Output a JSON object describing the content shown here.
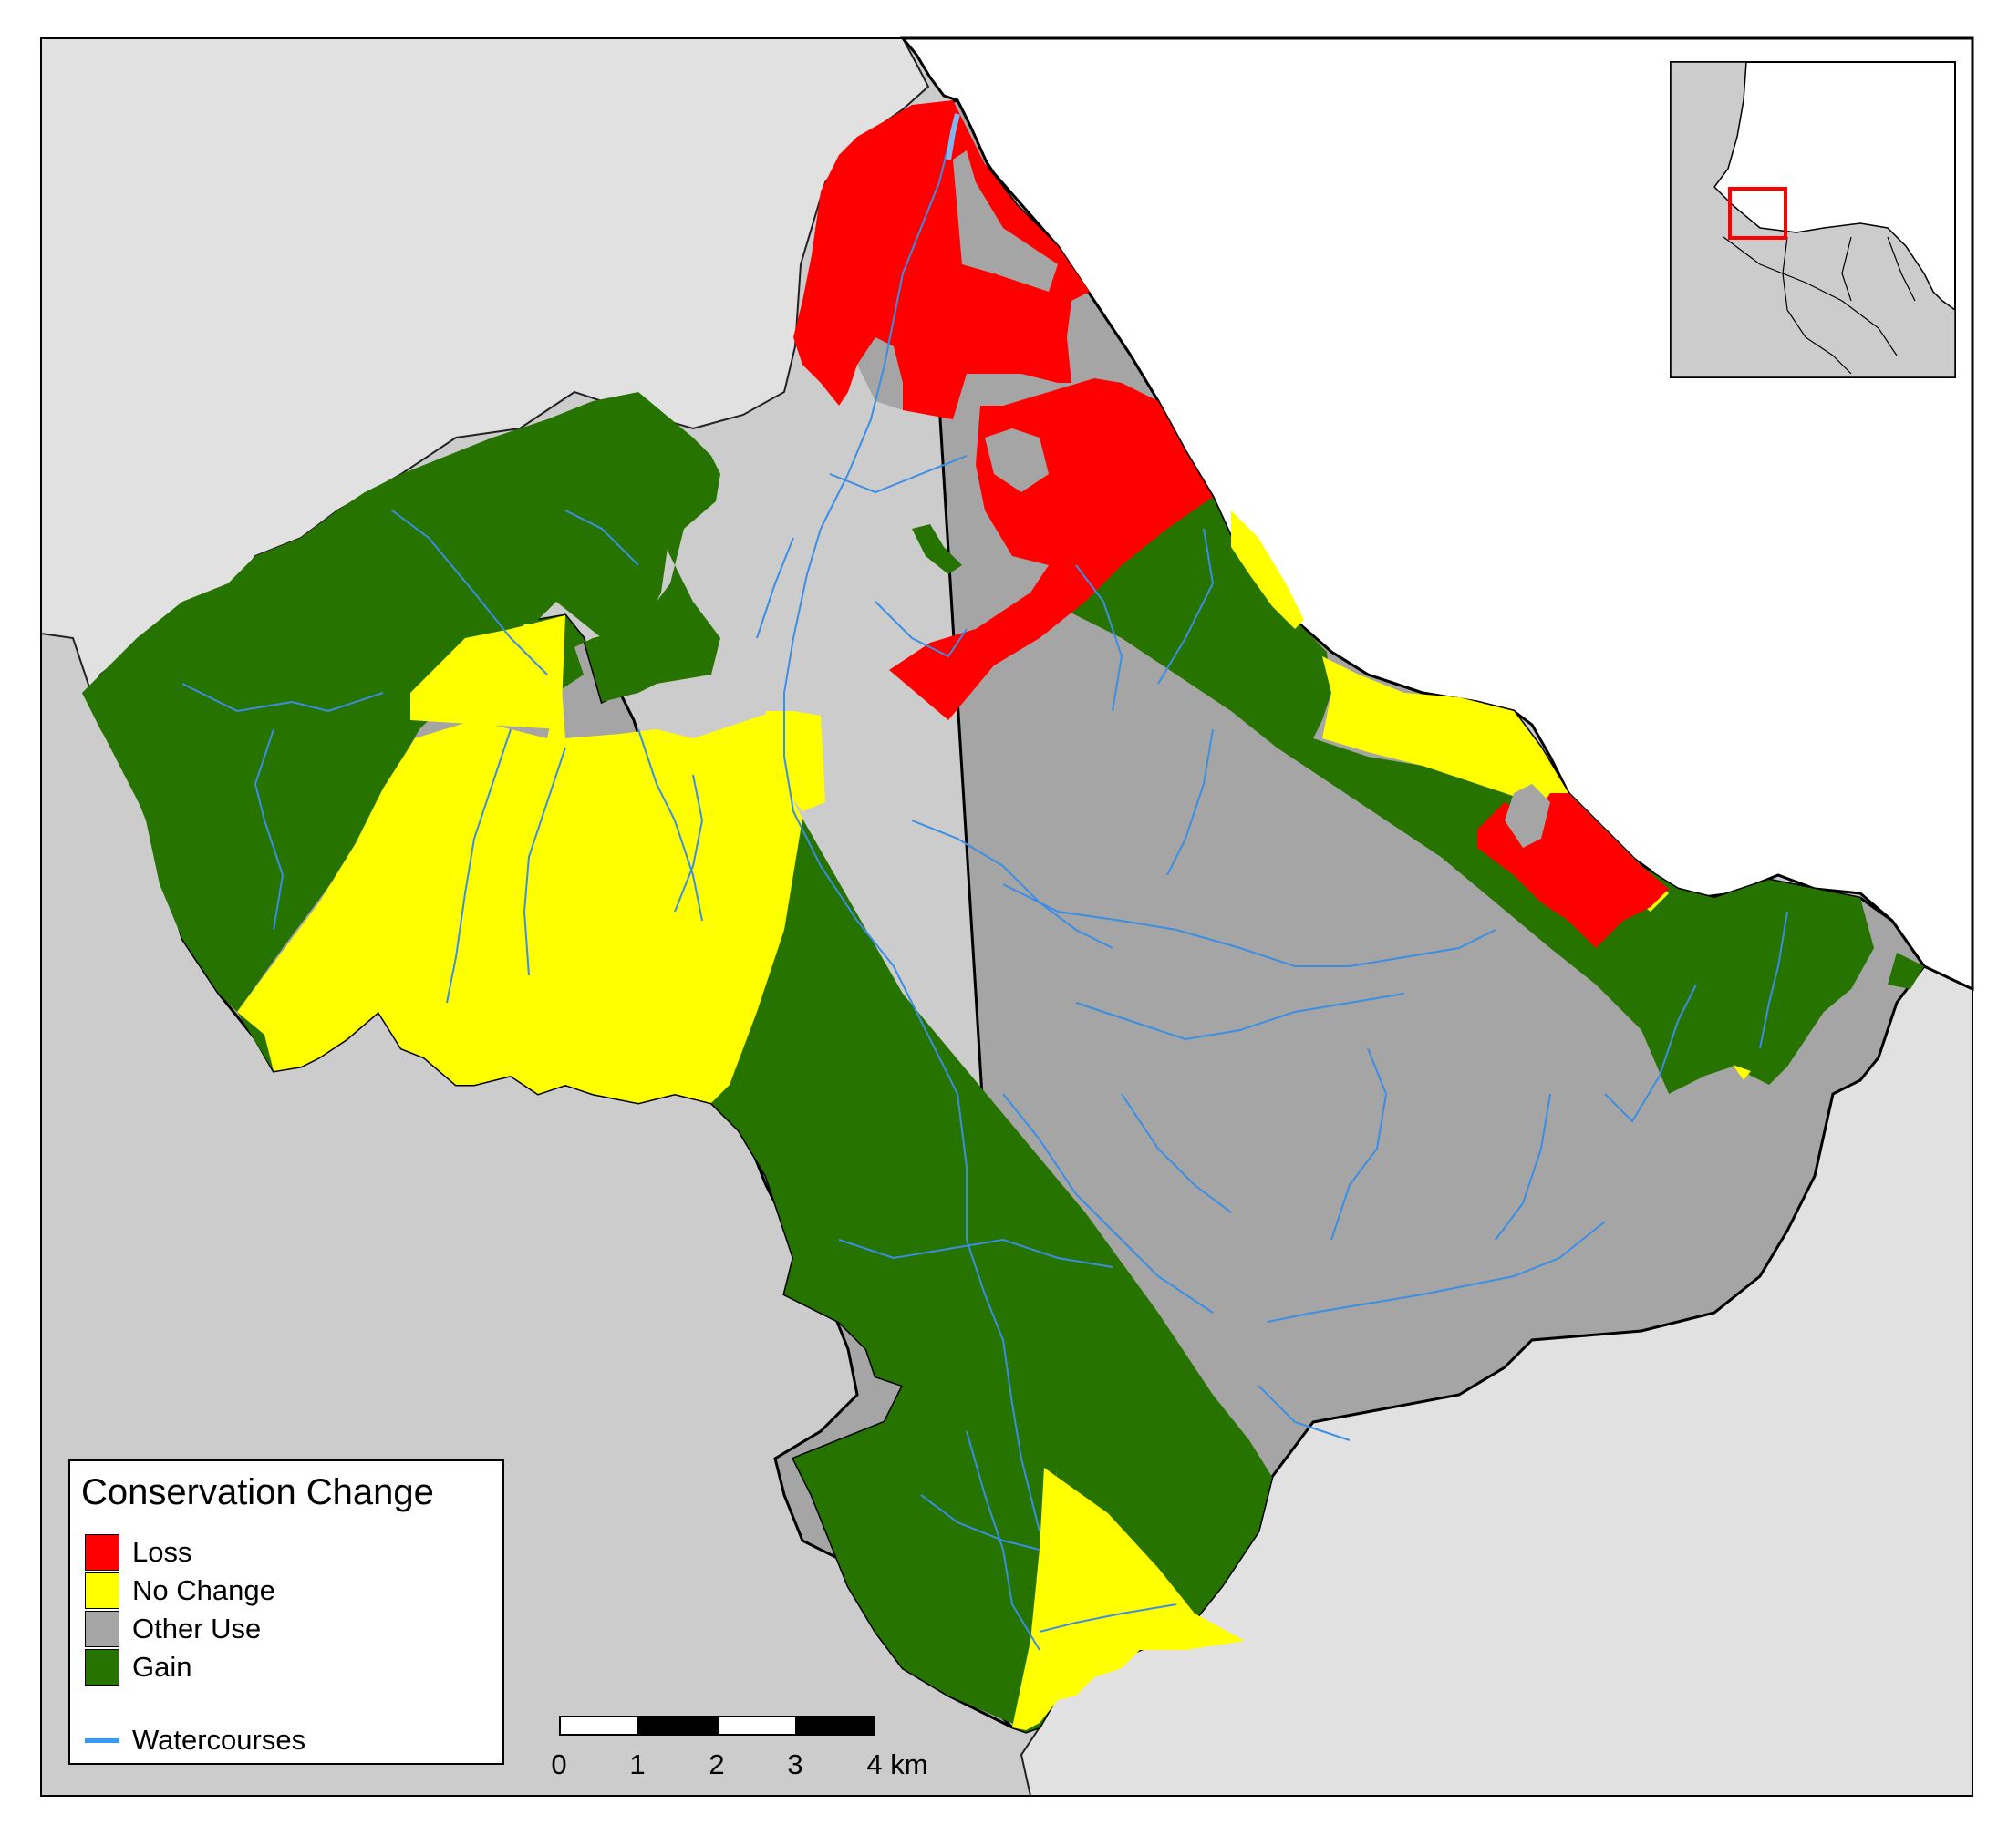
{
  "map": {
    "legend": {
      "title": "Conservation Change",
      "items": [
        {
          "label": "Loss",
          "color": "#ff0000"
        },
        {
          "label": "No Change",
          "color": "#ffff00"
        },
        {
          "label": "Other Use",
          "color": "#a5a5a5"
        },
        {
          "label": "Gain",
          "color": "#267300"
        }
      ],
      "line_item": {
        "label": "Watercourses",
        "color": "#3399ff"
      }
    },
    "scalebar": {
      "ticks": [
        "0",
        "1",
        "2",
        "3",
        "4 km"
      ]
    },
    "colors": {
      "background_land": "#cccccc",
      "outer_land": "#e1e1e1",
      "sea": "#ffffff",
      "inset_highlight": "#ff0000"
    }
  }
}
